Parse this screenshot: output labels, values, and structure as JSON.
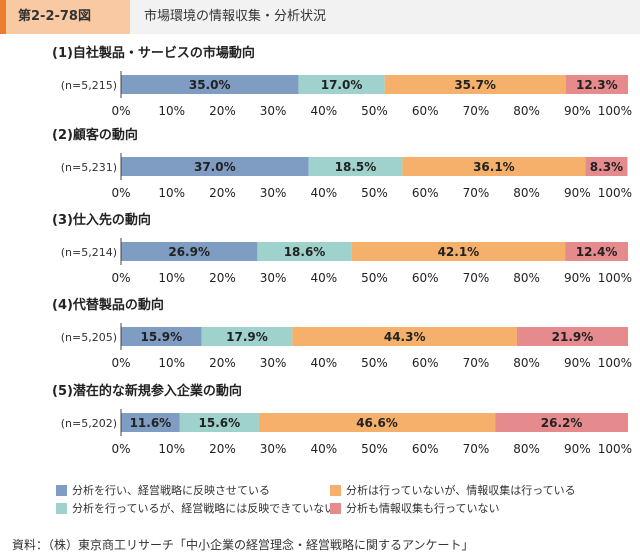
{
  "header": {
    "figure_number": "第2-2-78図",
    "title": "市場環境の情報収集・分析状況"
  },
  "colors": {
    "series": [
      "#7f9cc3",
      "#9fd2cc",
      "#f5b06b",
      "#e58b8e"
    ]
  },
  "legend": [
    {
      "label": "分析を行い、経営戦略に反映させている"
    },
    {
      "label": "分析を行っているが、経営戦略には反映できていない"
    },
    {
      "label": "分析は行っていないが、情報収集は行っている"
    },
    {
      "label": "分析も情報収集も行っていない"
    }
  ],
  "chart_data": [
    {
      "type": "bar",
      "orientation": "horizontal-stacked",
      "title": "(1)自社製品・サービスの市場動向",
      "n_label": "(n=5,215)",
      "values": [
        35.0,
        17.0,
        35.7,
        12.3
      ],
      "labels": [
        "35.0%",
        "17.0%",
        "35.7%",
        "12.3%"
      ],
      "xlim": [
        0,
        100
      ],
      "ticks": [
        "0%",
        "10%",
        "20%",
        "30%",
        "40%",
        "50%",
        "60%",
        "70%",
        "80%",
        "90%",
        "100%"
      ]
    },
    {
      "type": "bar",
      "orientation": "horizontal-stacked",
      "title": "(2)顧客の動向",
      "n_label": "(n=5,231)",
      "values": [
        37.0,
        18.5,
        36.1,
        8.3
      ],
      "labels": [
        "37.0%",
        "18.5%",
        "36.1%",
        "8.3%"
      ],
      "xlim": [
        0,
        100
      ],
      "ticks": [
        "0%",
        "10%",
        "20%",
        "30%",
        "40%",
        "50%",
        "60%",
        "70%",
        "80%",
        "90%",
        "100%"
      ]
    },
    {
      "type": "bar",
      "orientation": "horizontal-stacked",
      "title": "(3)仕入先の動向",
      "n_label": "(n=5,214)",
      "values": [
        26.9,
        18.6,
        42.1,
        12.4
      ],
      "labels": [
        "26.9%",
        "18.6%",
        "42.1%",
        "12.4%"
      ],
      "xlim": [
        0,
        100
      ],
      "ticks": [
        "0%",
        "10%",
        "20%",
        "30%",
        "40%",
        "50%",
        "60%",
        "70%",
        "80%",
        "90%",
        "100%"
      ]
    },
    {
      "type": "bar",
      "orientation": "horizontal-stacked",
      "title": "(4)代替製品の動向",
      "n_label": "(n=5,205)",
      "values": [
        15.9,
        17.9,
        44.3,
        21.9
      ],
      "labels": [
        "15.9%",
        "17.9%",
        "44.3%",
        "21.9%"
      ],
      "xlim": [
        0,
        100
      ],
      "ticks": [
        "0%",
        "10%",
        "20%",
        "30%",
        "40%",
        "50%",
        "60%",
        "70%",
        "80%",
        "90%",
        "100%"
      ]
    },
    {
      "type": "bar",
      "orientation": "horizontal-stacked",
      "title": "(5)潜在的な新規参入企業の動向",
      "n_label": "(n=5,202)",
      "values": [
        11.6,
        15.6,
        46.6,
        26.2
      ],
      "labels": [
        "11.6%",
        "15.6%",
        "46.6%",
        "26.2%"
      ],
      "xlim": [
        0,
        100
      ],
      "ticks": [
        "0%",
        "10%",
        "20%",
        "30%",
        "40%",
        "50%",
        "60%",
        "70%",
        "80%",
        "90%",
        "100%"
      ]
    }
  ],
  "source": "資料：（株）東京商工リサーチ「中小企業の経営理念・経営戦略に関するアンケート」"
}
